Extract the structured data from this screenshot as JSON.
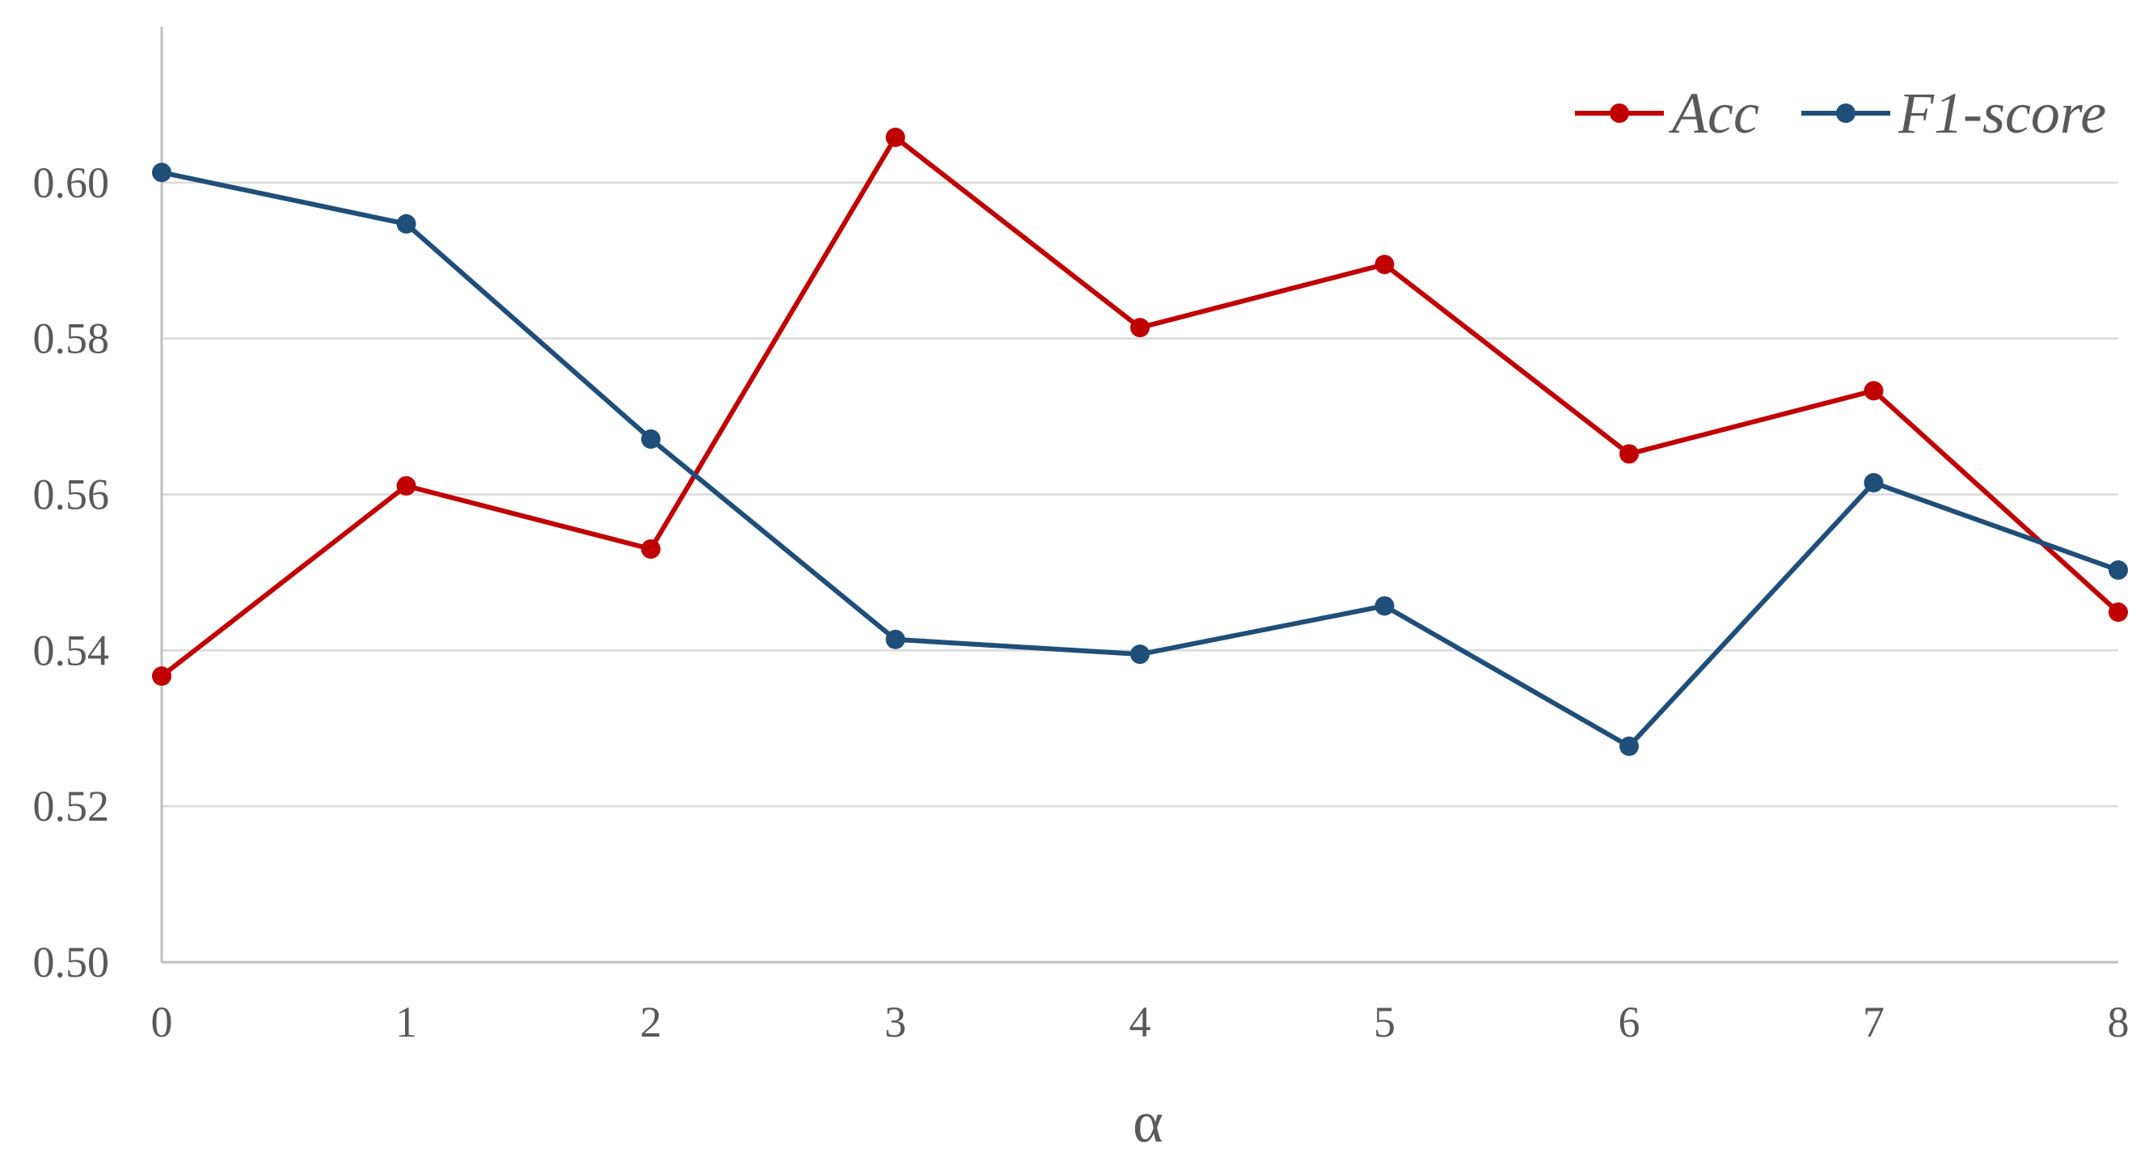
{
  "chart_data": {
    "type": "line",
    "title": "",
    "xlabel": "α",
    "ylabel": "",
    "x": [
      0,
      1,
      2,
      3,
      4,
      5,
      6,
      7,
      8
    ],
    "x_tick_labels": [
      "0",
      "1",
      "2",
      "3",
      "4",
      "5",
      "6",
      "7",
      "8"
    ],
    "xlim": [
      0,
      8
    ],
    "ylim": [
      0.5,
      0.62
    ],
    "y_ticks": [
      0.5,
      0.52,
      0.54,
      0.56,
      0.58,
      0.6
    ],
    "y_tick_labels": [
      "0.50",
      "0.52",
      "0.54",
      "0.56",
      "0.58",
      "0.60"
    ],
    "grid": "horizontal",
    "legend_position": "top-right",
    "series": [
      {
        "name": "Acc",
        "color": "#c00000",
        "values": [
          0.5367,
          0.5611,
          0.553,
          0.6058,
          0.5814,
          0.5895,
          0.5652,
          0.5733,
          0.5449
        ]
      },
      {
        "name": "F1-score",
        "color": "#1f4e79",
        "values": [
          0.6013,
          0.5947,
          0.5671,
          0.5414,
          0.5395,
          0.5457,
          0.5277,
          0.5615,
          0.5503
        ]
      }
    ]
  }
}
